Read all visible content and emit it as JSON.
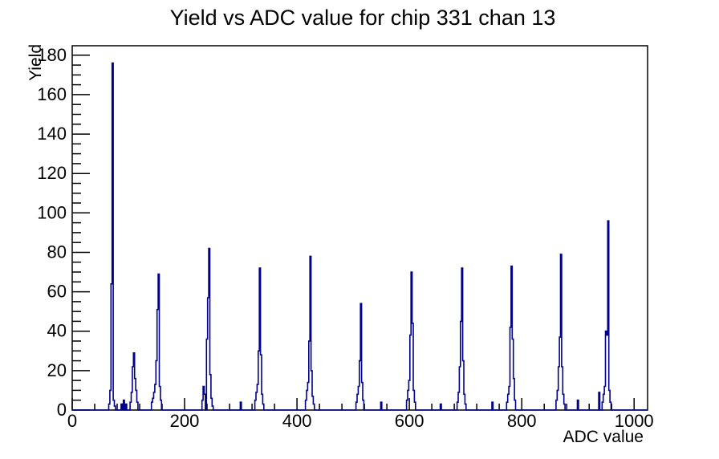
{
  "page": {
    "background": "#ffffff"
  },
  "chart_data": {
    "type": "bar",
    "style": "root-histogram-outline",
    "title": "Yield vs ADC value for chip 331 chan 13",
    "xlabel": "ADC value",
    "ylabel": "Yield",
    "xlim": [
      0,
      1024
    ],
    "ylim": [
      0,
      184.8
    ],
    "grid": false,
    "legend": false,
    "line_color": "#00008b",
    "axis_color": "#000000",
    "x_major_ticks": [
      0,
      200,
      400,
      600,
      800,
      1000
    ],
    "x_minor_step": 40,
    "y_major_ticks": [
      0,
      20,
      40,
      60,
      80,
      100,
      120,
      140,
      160,
      180
    ],
    "y_minor_step": 5,
    "bin_width": 2,
    "bins": [
      [
        66,
        3
      ],
      [
        68,
        10
      ],
      [
        70,
        64
      ],
      [
        72,
        176
      ],
      [
        74,
        5
      ],
      [
        76,
        2
      ],
      [
        88,
        3
      ],
      [
        92,
        5
      ],
      [
        96,
        3
      ],
      [
        104,
        4
      ],
      [
        106,
        9
      ],
      [
        108,
        22
      ],
      [
        110,
        29
      ],
      [
        112,
        16
      ],
      [
        114,
        10
      ],
      [
        116,
        4
      ],
      [
        142,
        4
      ],
      [
        144,
        6
      ],
      [
        146,
        9
      ],
      [
        148,
        13
      ],
      [
        150,
        25
      ],
      [
        152,
        51
      ],
      [
        154,
        69
      ],
      [
        156,
        12
      ],
      [
        158,
        5
      ],
      [
        232,
        5
      ],
      [
        234,
        12
      ],
      [
        236,
        8
      ],
      [
        240,
        36
      ],
      [
        242,
        57
      ],
      [
        244,
        82
      ],
      [
        246,
        18
      ],
      [
        248,
        6
      ],
      [
        250,
        2
      ],
      [
        300,
        4
      ],
      [
        326,
        5
      ],
      [
        328,
        9
      ],
      [
        330,
        13
      ],
      [
        332,
        30
      ],
      [
        334,
        72
      ],
      [
        336,
        28
      ],
      [
        338,
        8
      ],
      [
        340,
        3
      ],
      [
        416,
        5
      ],
      [
        418,
        10
      ],
      [
        420,
        14
      ],
      [
        422,
        35
      ],
      [
        424,
        78
      ],
      [
        426,
        20
      ],
      [
        428,
        7
      ],
      [
        430,
        3
      ],
      [
        506,
        4
      ],
      [
        508,
        8
      ],
      [
        510,
        12
      ],
      [
        512,
        25
      ],
      [
        514,
        54
      ],
      [
        516,
        14
      ],
      [
        518,
        5
      ],
      [
        550,
        4
      ],
      [
        596,
        5
      ],
      [
        598,
        10
      ],
      [
        600,
        15
      ],
      [
        602,
        38
      ],
      [
        604,
        70
      ],
      [
        606,
        44
      ],
      [
        608,
        10
      ],
      [
        610,
        4
      ],
      [
        656,
        3
      ],
      [
        686,
        4
      ],
      [
        688,
        9
      ],
      [
        690,
        22
      ],
      [
        692,
        45
      ],
      [
        694,
        72
      ],
      [
        696,
        25
      ],
      [
        698,
        8
      ],
      [
        700,
        3
      ],
      [
        748,
        4
      ],
      [
        774,
        4
      ],
      [
        776,
        8
      ],
      [
        778,
        12
      ],
      [
        780,
        42
      ],
      [
        782,
        73
      ],
      [
        784,
        36
      ],
      [
        786,
        16
      ],
      [
        788,
        5
      ],
      [
        862,
        5
      ],
      [
        864,
        10
      ],
      [
        866,
        22
      ],
      [
        868,
        37
      ],
      [
        870,
        79
      ],
      [
        872,
        22
      ],
      [
        874,
        8
      ],
      [
        876,
        3
      ],
      [
        900,
        5
      ],
      [
        938,
        9
      ],
      [
        944,
        4
      ],
      [
        946,
        8
      ],
      [
        948,
        12
      ],
      [
        950,
        40
      ],
      [
        952,
        38
      ],
      [
        954,
        96
      ],
      [
        956,
        10
      ],
      [
        958,
        4
      ]
    ],
    "peaks": [
      {
        "adc": 72,
        "yield": 176
      },
      {
        "adc": 110,
        "yield": 29
      },
      {
        "adc": 154,
        "yield": 69
      },
      {
        "adc": 244,
        "yield": 82
      },
      {
        "adc": 334,
        "yield": 72
      },
      {
        "adc": 424,
        "yield": 78
      },
      {
        "adc": 514,
        "yield": 54
      },
      {
        "adc": 604,
        "yield": 70
      },
      {
        "adc": 694,
        "yield": 72
      },
      {
        "adc": 782,
        "yield": 73
      },
      {
        "adc": 870,
        "yield": 79
      },
      {
        "adc": 954,
        "yield": 96
      }
    ]
  }
}
